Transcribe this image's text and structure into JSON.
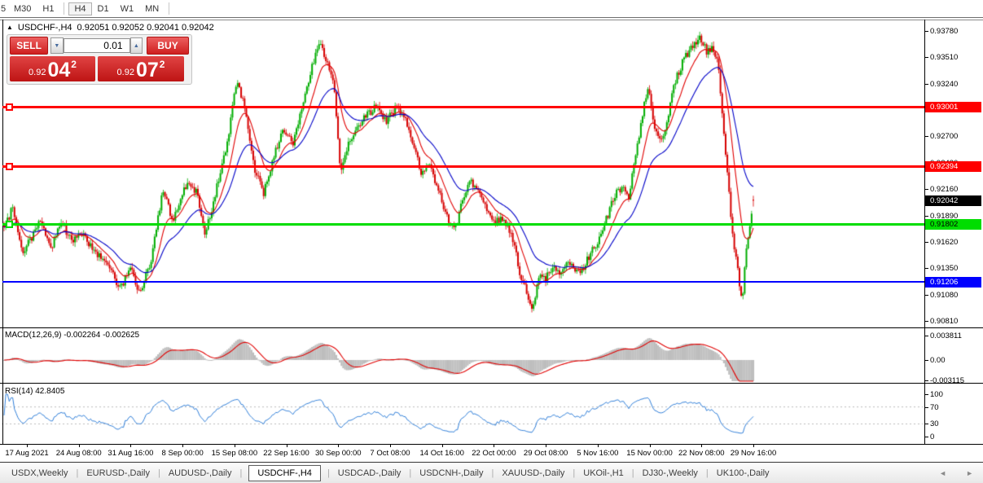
{
  "toolbar": {
    "timeframes": [
      "5",
      "M30",
      "H1",
      "H4",
      "D1",
      "W1",
      "MN"
    ],
    "active": "H4"
  },
  "chart_header": {
    "collapse_icon": "▲",
    "title": "USDCHF-,H4",
    "ohlc": "0.92051 0.92052 0.92041 0.92042"
  },
  "trade_panel": {
    "sell_label": "SELL",
    "buy_label": "BUY",
    "volume": "0.01",
    "volume_down_icon": "▼",
    "volume_up_icon": "▲",
    "sell_price": {
      "prefix": "0.92",
      "big": "04",
      "sup": "2"
    },
    "buy_price": {
      "prefix": "0.92",
      "big": "07",
      "sup": "2"
    }
  },
  "price_axis": {
    "ticks": [
      "0.93780",
      "0.93510",
      "0.93240",
      "0.92970",
      "0.92700",
      "0.92430",
      "0.92160",
      "0.91890",
      "0.91620",
      "0.91350",
      "0.91080",
      "0.90810"
    ],
    "tags": [
      {
        "text": "0.93001",
        "bg": "#FF0000",
        "fg": "#FFFFFF"
      },
      {
        "text": "0.92394",
        "bg": "#FF0000",
        "fg": "#FFFFFF"
      },
      {
        "text": "0.92042",
        "bg": "#000000",
        "fg": "#FFFFFF"
      },
      {
        "text": "0.91802",
        "bg": "#00DD00",
        "fg": "#000000"
      },
      {
        "text": "0.91206",
        "bg": "#0000FF",
        "fg": "#FFFFFF"
      }
    ]
  },
  "indicators": {
    "macd": {
      "label": "MACD(12,26,9) -0.002264 -0.002625",
      "scale": [
        "0.003811",
        "0.00",
        "-0.003115"
      ]
    },
    "rsi": {
      "label": "RSI(14) 42.8405",
      "scale": [
        "100",
        "70",
        "30",
        "0"
      ]
    }
  },
  "x_axis": {
    "labels": [
      "17 Aug 2021",
      "24 Aug 08:00",
      "31 Aug 16:00",
      "8 Sep 00:00",
      "15 Sep 08:00",
      "22 Sep 16:00",
      "30 Sep 00:00",
      "7 Oct 08:00",
      "14 Oct 16:00",
      "22 Oct 00:00",
      "29 Oct 08:00",
      "5 Nov 16:00",
      "15 Nov 00:00",
      "22 Nov 08:00",
      "29 Nov 16:00"
    ]
  },
  "tabs": {
    "separator": "|",
    "active": "USDCHF-,H4",
    "scroll_left_icon": "◄",
    "scroll_right_icon": "►",
    "items": [
      "USDX,Weekly",
      "EURUSD-,Daily",
      "AUDUSD-,Daily",
      "USDCHF-,H4",
      "USDCAD-,Daily",
      "USDCNH-,Daily",
      "XAUUSD-,Daily",
      "UKOil-,H1",
      "DJ30-,Weekly",
      "UK100-,Daily"
    ]
  },
  "chart_data": {
    "type": "candlestick",
    "symbol": "USDCHF-",
    "timeframe": "H4",
    "current_bar": {
      "open": 0.92051,
      "high": 0.92052,
      "low": 0.92041,
      "close": 0.92042
    },
    "y_axis_range": {
      "top_tick": 0.9378,
      "bottom_tick": 0.9081,
      "tick_step": 0.0027
    },
    "hlines": [
      {
        "price": 0.93001,
        "color": "#FF0000",
        "thickness": 3,
        "marker": true
      },
      {
        "price": 0.92394,
        "color": "#FF0000",
        "thickness": 3,
        "marker": true
      },
      {
        "price": 0.91802,
        "color": "#00DD00",
        "thickness": 3,
        "marker": true
      },
      {
        "price": 0.91206,
        "color": "#0000FF",
        "thickness": 2,
        "marker": false
      }
    ],
    "current_price_tag": {
      "price": 0.92042,
      "bg": "#000000"
    },
    "bull_color": "#00AD00",
    "bear_color": "#D60000",
    "ma_fast": {
      "period": 12,
      "color": "#E00000"
    },
    "ma_slow": {
      "period": 30,
      "color": "#0000C8"
    },
    "macd": {
      "fast": 12,
      "slow": 26,
      "signal": 9,
      "main_value": -0.002264,
      "signal_value": -0.002625,
      "scale_max": 0.003811,
      "scale_min": -0.003115,
      "hist_color": "#BDBDBD",
      "signal_color": "#E00000"
    },
    "rsi": {
      "period": 14,
      "value": 42.8405,
      "levels": [
        30,
        70
      ],
      "color": "#2F7ED8"
    },
    "bars": 434,
    "price_path": [
      [
        5,
        0.9176
      ],
      [
        15,
        0.9196
      ],
      [
        28,
        0.9152
      ],
      [
        40,
        0.9168
      ],
      [
        50,
        0.9186
      ],
      [
        62,
        0.9152
      ],
      [
        75,
        0.9184
      ],
      [
        88,
        0.9162
      ],
      [
        100,
        0.9172
      ],
      [
        115,
        0.9152
      ],
      [
        130,
        0.9142
      ],
      [
        148,
        0.9114
      ],
      [
        160,
        0.9136
      ],
      [
        172,
        0.9108
      ],
      [
        186,
        0.9146
      ],
      [
        200,
        0.9216
      ],
      [
        212,
        0.9182
      ],
      [
        228,
        0.922
      ],
      [
        242,
        0.9212
      ],
      [
        252,
        0.9168
      ],
      [
        265,
        0.9214
      ],
      [
        278,
        0.9258
      ],
      [
        290,
        0.9326
      ],
      [
        300,
        0.9304
      ],
      [
        312,
        0.9238
      ],
      [
        324,
        0.9212
      ],
      [
        336,
        0.925
      ],
      [
        348,
        0.9278
      ],
      [
        360,
        0.9262
      ],
      [
        372,
        0.9304
      ],
      [
        382,
        0.9338
      ],
      [
        392,
        0.9366
      ],
      [
        400,
        0.935
      ],
      [
        410,
        0.9322
      ],
      [
        418,
        0.9234
      ],
      [
        428,
        0.9264
      ],
      [
        438,
        0.928
      ],
      [
        450,
        0.9292
      ],
      [
        462,
        0.93
      ],
      [
        475,
        0.9286
      ],
      [
        487,
        0.93
      ],
      [
        497,
        0.9288
      ],
      [
        507,
        0.9262
      ],
      [
        518,
        0.9232
      ],
      [
        528,
        0.924
      ],
      [
        538,
        0.9216
      ],
      [
        548,
        0.919
      ],
      [
        558,
        0.9172
      ],
      [
        568,
        0.9204
      ],
      [
        578,
        0.9224
      ],
      [
        588,
        0.9214
      ],
      [
        598,
        0.9196
      ],
      [
        608,
        0.9184
      ],
      [
        618,
        0.9186
      ],
      [
        628,
        0.917
      ],
      [
        638,
        0.9132
      ],
      [
        648,
        0.9106
      ],
      [
        655,
        0.9094
      ],
      [
        662,
        0.9128
      ],
      [
        670,
        0.9124
      ],
      [
        678,
        0.9136
      ],
      [
        686,
        0.913
      ],
      [
        695,
        0.914
      ],
      [
        705,
        0.9136
      ],
      [
        715,
        0.9132
      ],
      [
        725,
        0.915
      ],
      [
        735,
        0.9162
      ],
      [
        745,
        0.9186
      ],
      [
        755,
        0.921
      ],
      [
        765,
        0.922
      ],
      [
        772,
        0.9206
      ],
      [
        780,
        0.9248
      ],
      [
        790,
        0.9298
      ],
      [
        796,
        0.932
      ],
      [
        803,
        0.9282
      ],
      [
        810,
        0.9268
      ],
      [
        818,
        0.9278
      ],
      [
        826,
        0.9318
      ],
      [
        835,
        0.934
      ],
      [
        843,
        0.9354
      ],
      [
        852,
        0.9364
      ],
      [
        860,
        0.9372
      ],
      [
        868,
        0.9356
      ],
      [
        876,
        0.936
      ],
      [
        882,
        0.9342
      ],
      [
        888,
        0.9282
      ],
      [
        894,
        0.9222
      ],
      [
        900,
        0.9162
      ],
      [
        906,
        0.9132
      ],
      [
        911,
        0.91
      ],
      [
        916,
        0.915
      ],
      [
        920,
        0.9178
      ],
      [
        925,
        0.9204
      ]
    ]
  }
}
